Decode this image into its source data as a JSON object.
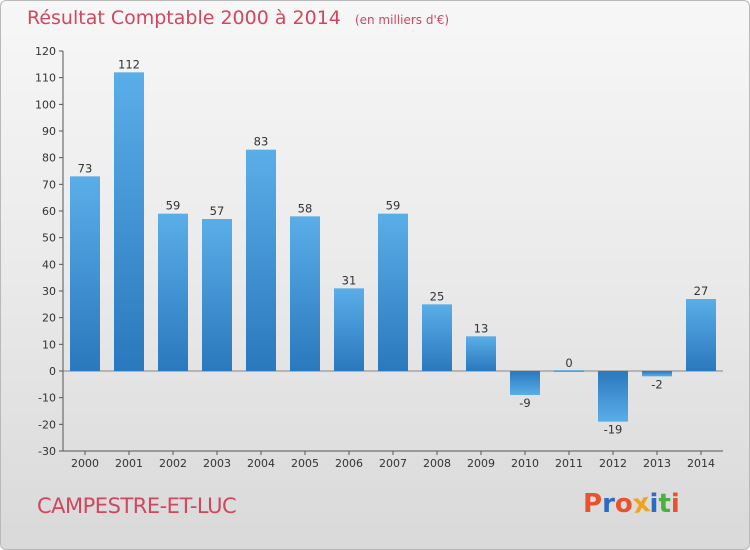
{
  "chart_data": {
    "type": "bar",
    "title": "Résultat Comptable 2000 à 2014",
    "subtitle": "(en milliers d'€)",
    "categories": [
      "2000",
      "2001",
      "2002",
      "2003",
      "2004",
      "2005",
      "2006",
      "2007",
      "2008",
      "2009",
      "2010",
      "2011",
      "2012",
      "2013",
      "2014"
    ],
    "values": [
      73,
      112,
      59,
      57,
      83,
      58,
      31,
      59,
      25,
      13,
      -9,
      0,
      -19,
      -2,
      27
    ],
    "ylim": [
      -30,
      120
    ],
    "yticks": [
      120,
      110,
      100,
      90,
      80,
      70,
      60,
      50,
      40,
      30,
      20,
      10,
      0,
      -10,
      -20,
      -30
    ],
    "xlabel": "",
    "ylabel": "",
    "grid": false,
    "legend": "none",
    "bar_color": "#3d8fd1"
  },
  "footer": {
    "town": "CAMPESTRE-ET-LUC",
    "logo_text": "Proxiti"
  },
  "colors": {
    "title": "#d0475f",
    "logo_letters": [
      "#e8532d",
      "#2b6dc4",
      "#e8532d",
      "#f2a31b",
      "#2b6dc4",
      "#4caf3f",
      "#e8532d"
    ]
  }
}
